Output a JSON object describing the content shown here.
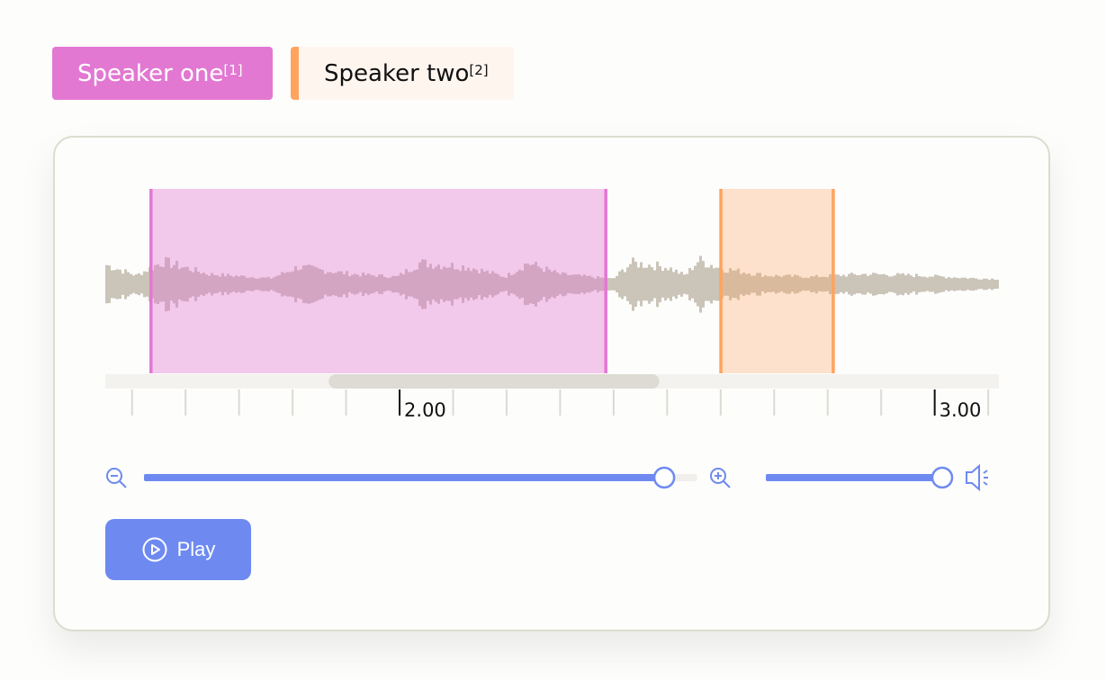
{
  "speakers": [
    {
      "label": "Speaker one",
      "ref": "[1]",
      "color": "#e278d2",
      "start": 1.535,
      "end": 2.385
    },
    {
      "label": "Speaker two",
      "ref": "[2]",
      "color": "#ffa35e",
      "start": 2.6,
      "end": 2.81
    }
  ],
  "timeline": {
    "view_start": 1.45,
    "view_end": 3.12,
    "tick_step": 0.1,
    "labels": [
      "2.00",
      "3.00"
    ]
  },
  "scrollbar": {
    "thumb_start_fraction": 0.25,
    "thumb_end_fraction": 0.62
  },
  "zoom": {
    "value_fraction": 0.94,
    "zoom_out_icon": "zoom-out-icon",
    "zoom_in_icon": "zoom-in-icon"
  },
  "volume": {
    "value_fraction": 1.0,
    "icon": "speaker-volume-icon"
  },
  "play_button": {
    "label": "Play",
    "icon": "play-circle-icon"
  },
  "colors": {
    "accent": "#6e8af0",
    "waveform": "#cbc4b8"
  }
}
